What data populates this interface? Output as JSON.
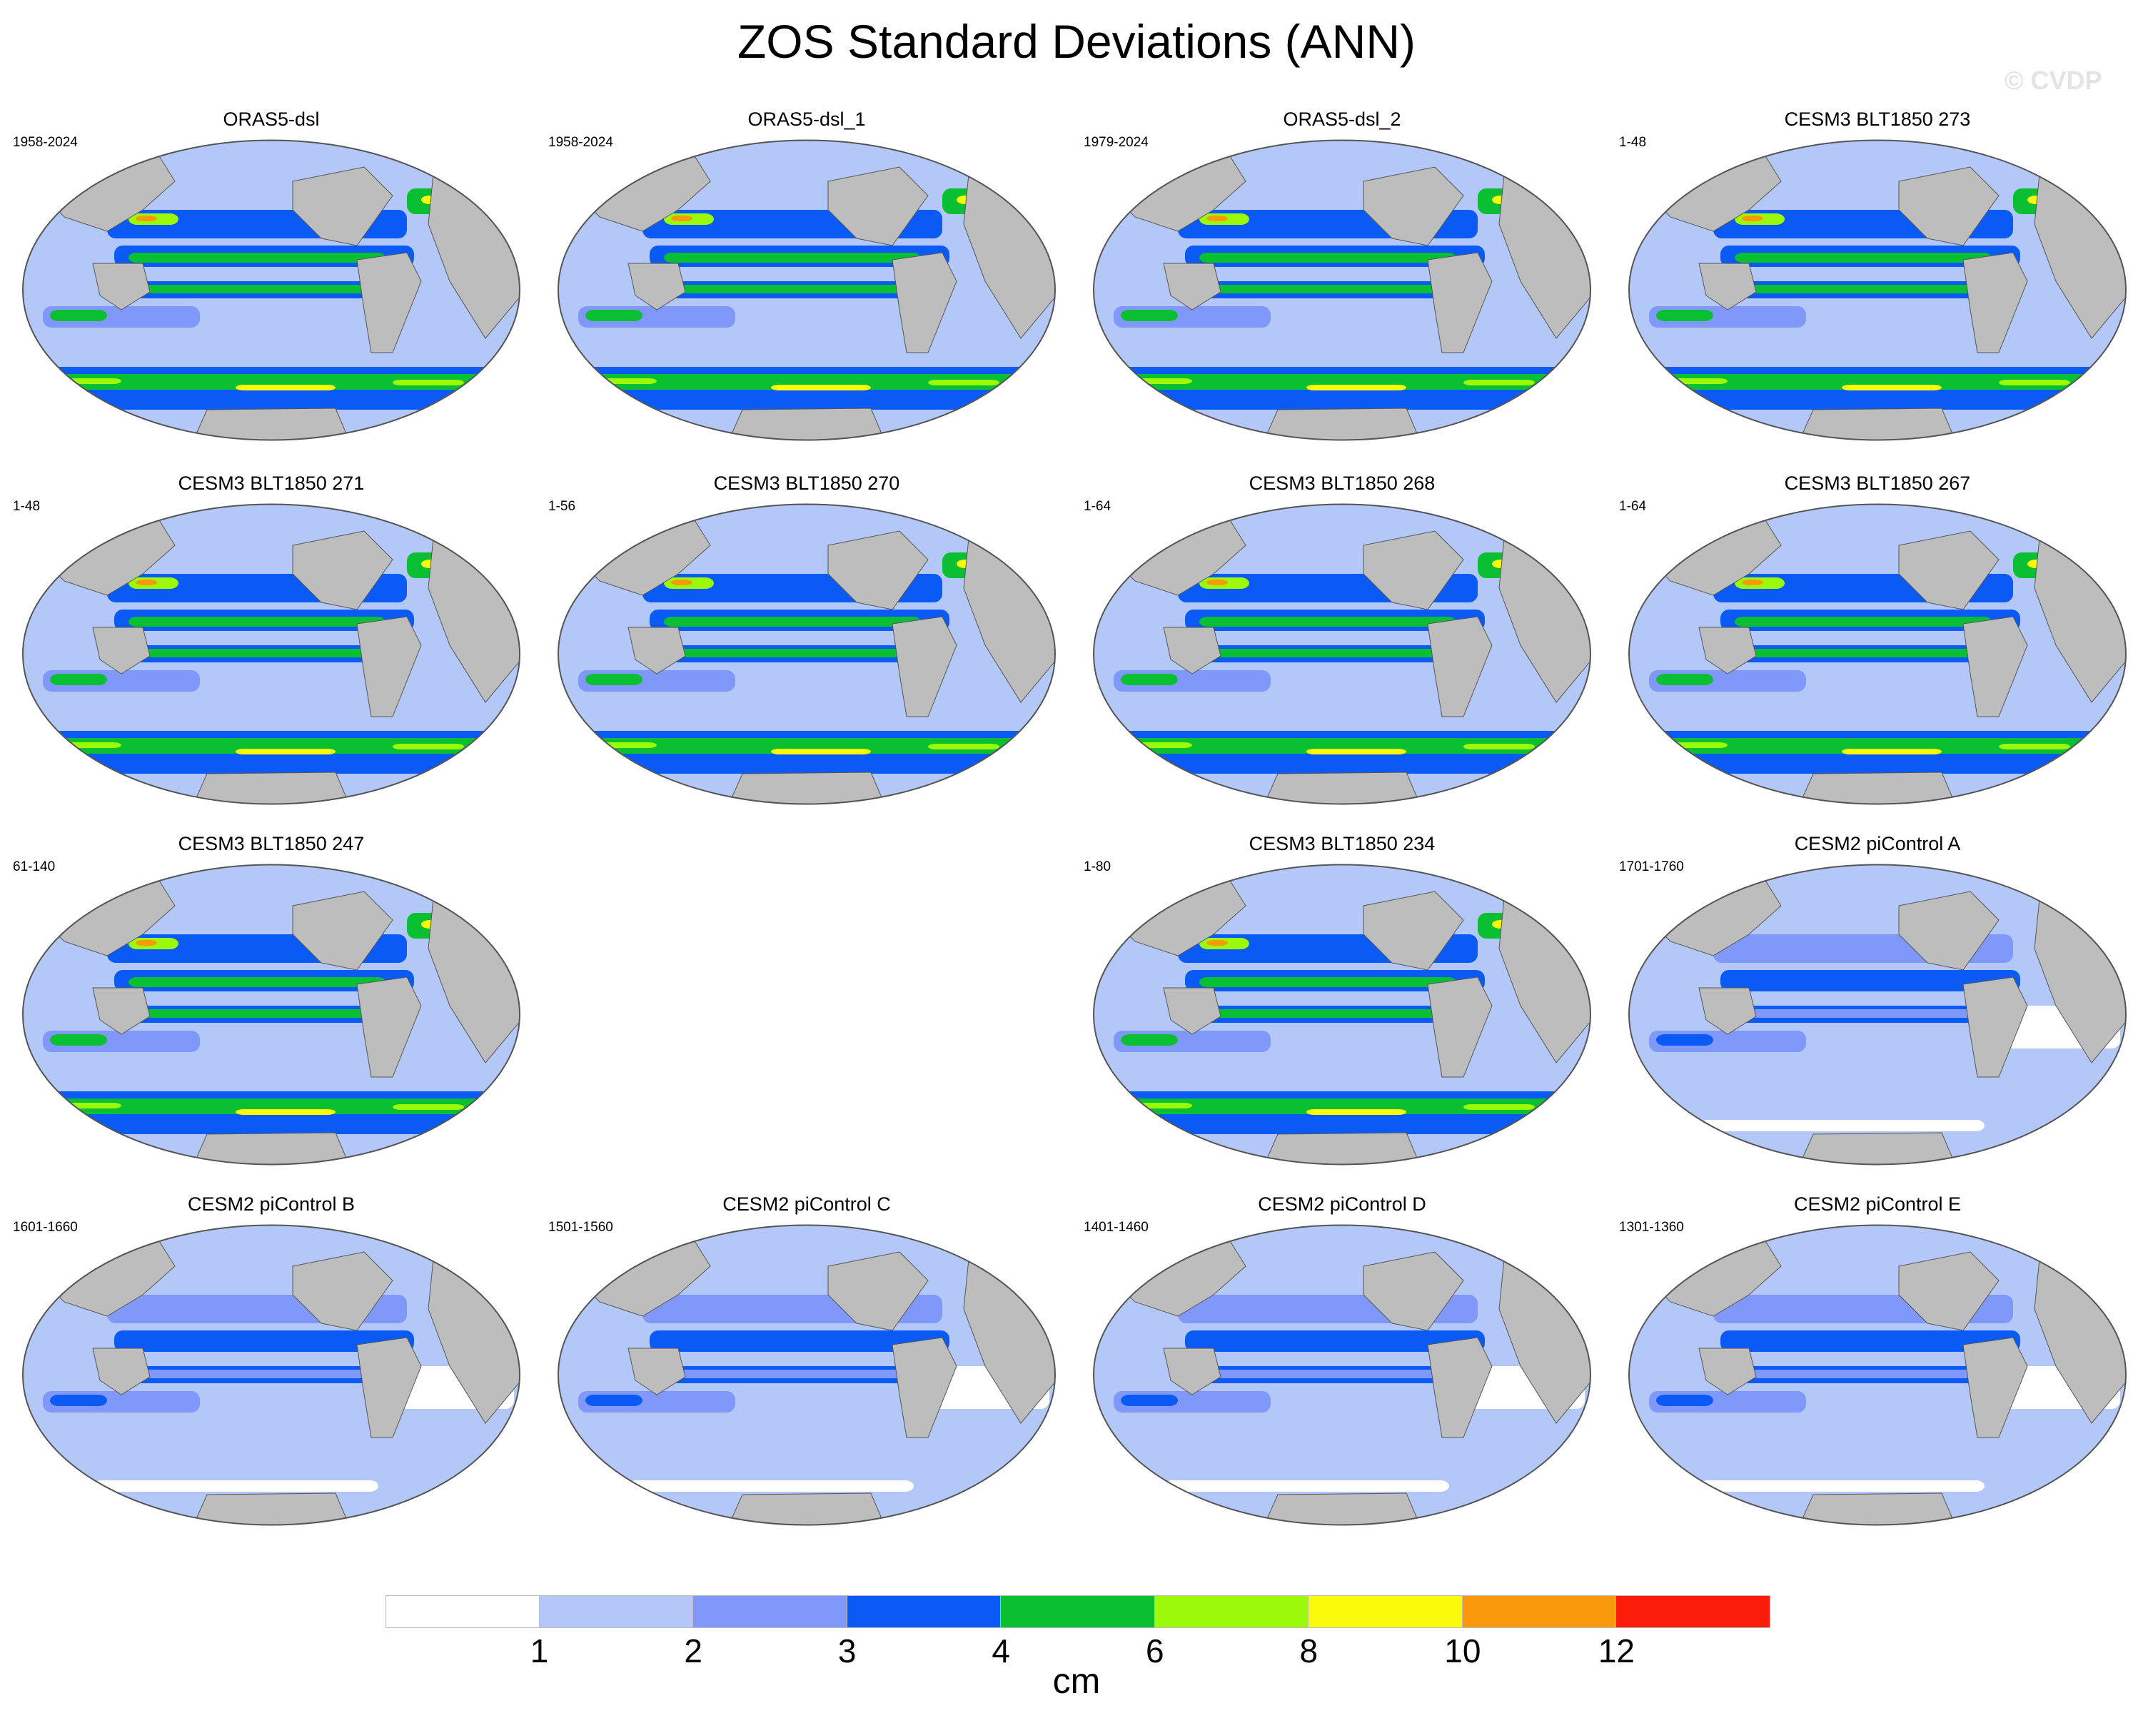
{
  "title": "ZOS Standard Deviations (ANN)",
  "watermark": "© CVDP",
  "units": "cm",
  "colors": {
    "land": "#bdbdbd",
    "levels": [
      "#ffffff",
      "#b4c8f8",
      "#8098fa",
      "#0a5af6",
      "#0ac032",
      "#9afa0a",
      "#fafa0a",
      "#fa9a0a",
      "#fa1e0a"
    ]
  },
  "colorbar": {
    "labels": [
      "1",
      "2",
      "3",
      "4",
      "6",
      "8",
      "10",
      "12"
    ],
    "boundaries": [
      1,
      2,
      3,
      4,
      6,
      8,
      10,
      12
    ]
  },
  "panels": [
    {
      "title": "ORAS5-dsl",
      "years": "1958-2024",
      "col": 0,
      "row": 0,
      "intensity": 3
    },
    {
      "title": "ORAS5-dsl_1",
      "years": "1958-2024",
      "col": 1,
      "row": 0,
      "intensity": 3
    },
    {
      "title": "ORAS5-dsl_2",
      "years": "1979-2024",
      "col": 2,
      "row": 0,
      "intensity": 3
    },
    {
      "title": "CESM3 BLT1850 273",
      "years": "1-48",
      "col": 3,
      "row": 0,
      "intensity": 3
    },
    {
      "title": "CESM3 BLT1850 271",
      "years": "1-48",
      "col": 0,
      "row": 1,
      "intensity": 3
    },
    {
      "title": "CESM3 BLT1850 270",
      "years": "1-56",
      "col": 1,
      "row": 1,
      "intensity": 3
    },
    {
      "title": "CESM3 BLT1850 268",
      "years": "1-64",
      "col": 2,
      "row": 1,
      "intensity": 3
    },
    {
      "title": "CESM3 BLT1850 267",
      "years": "1-64",
      "col": 3,
      "row": 1,
      "intensity": 3
    },
    {
      "title": "CESM3 BLT1850 247",
      "years": "61-140",
      "col": 0,
      "row": 2,
      "intensity": 3
    },
    {
      "title": "CESM3 BLT1850 234",
      "years": "1-80",
      "col": 2,
      "row": 2,
      "intensity": 3
    },
    {
      "title": "CESM2 piControl A",
      "years": "1701-1760",
      "col": 3,
      "row": 2,
      "intensity": 2
    },
    {
      "title": "CESM2 piControl B",
      "years": "1601-1660",
      "col": 0,
      "row": 3,
      "intensity": 2
    },
    {
      "title": "CESM2 piControl C",
      "years": "1501-1560",
      "col": 1,
      "row": 3,
      "intensity": 2
    },
    {
      "title": "CESM2 piControl D",
      "years": "1401-1460",
      "col": 2,
      "row": 3,
      "intensity": 2
    },
    {
      "title": "CESM2 piControl E",
      "years": "1301-1360",
      "col": 3,
      "row": 3,
      "intensity": 2
    }
  ]
}
